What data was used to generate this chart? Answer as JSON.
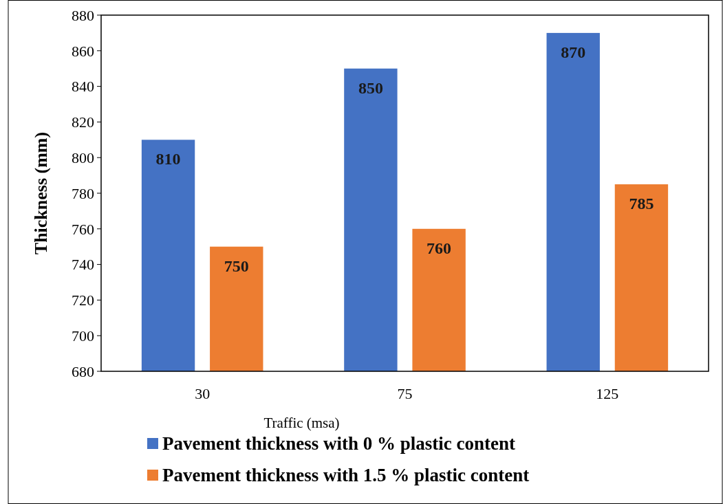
{
  "chart_data": {
    "type": "bar",
    "xlabel": "Traffic (msa)",
    "ylabel": "Thickness (mm)",
    "categories": [
      "30",
      "75",
      "125"
    ],
    "series": [
      {
        "name": "Pavement thickness with 0 % plastic content",
        "color": "#4472c4",
        "values": [
          810,
          850,
          870
        ]
      },
      {
        "name": "Pavement thickness with 1.5 % plastic content",
        "color": "#ed7d31",
        "values": [
          750,
          760,
          785
        ]
      }
    ],
    "ylim": [
      680,
      880
    ],
    "yticks": [
      680,
      700,
      720,
      740,
      760,
      780,
      800,
      820,
      840,
      860,
      880
    ],
    "data_labels": true,
    "grid": false,
    "legend": "bottom"
  }
}
